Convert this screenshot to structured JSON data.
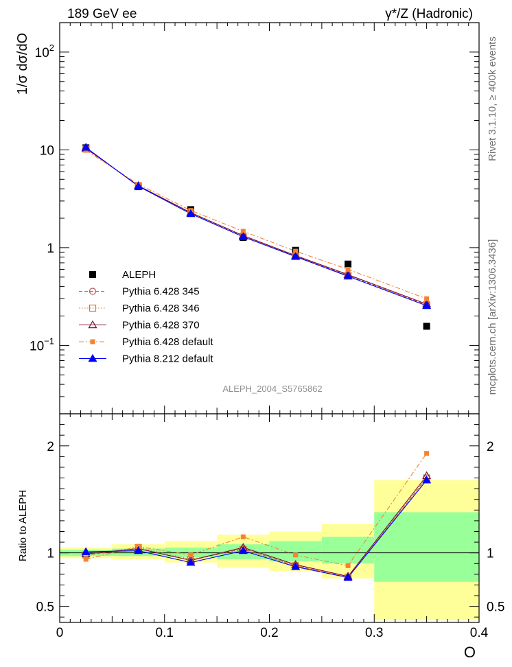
{
  "header": {
    "left": "189 GeV ee",
    "right": "γ*/Z (Hadronic)"
  },
  "side_labels": {
    "top": "Rivet 3.1.10, ≥ 400k events",
    "bottom": "mcplots.cern.ch [arXiv:1306.3436]"
  },
  "watermark": "ALEPH_2004_S5765862",
  "chart_data": [
    {
      "type": "line",
      "panel": "main",
      "ylabel": "1/σ dσ/dO",
      "xlabel": "O",
      "yscale": "log",
      "xlim": [
        0,
        0.4
      ],
      "ylim": [
        0.02,
        200
      ],
      "y_ticks": [
        {
          "value": 100,
          "base": "10",
          "exp": "2"
        },
        {
          "value": 10,
          "base": "10",
          "exp": ""
        },
        {
          "value": 1,
          "base": "1",
          "exp": ""
        },
        {
          "value": 0.1,
          "base": "10",
          "exp": "−1"
        }
      ],
      "x": [
        0.025,
        0.075,
        0.125,
        0.175,
        0.225,
        0.275,
        0.35
      ],
      "series": [
        {
          "name": "ALEPH",
          "marker": "filled-square",
          "color": "#000000",
          "line": "none",
          "values": [
            10.5,
            4.2,
            2.45,
            1.27,
            0.94,
            0.68,
            0.157
          ]
        },
        {
          "name": "Pythia 6.428 345",
          "marker": "open-circle",
          "color": "#c0504d",
          "line": "dashed",
          "values": [
            10.3,
            4.3,
            2.27,
            1.32,
            0.82,
            0.52,
            0.26
          ]
        },
        {
          "name": "Pythia 6.428 346",
          "marker": "open-square",
          "color": "#c87b3f",
          "line": "dotted",
          "values": [
            10.2,
            4.3,
            2.3,
            1.31,
            0.82,
            0.52,
            0.26
          ]
        },
        {
          "name": "Pythia 6.428 370",
          "marker": "open-triangle",
          "color": "#7a1030",
          "line": "solid",
          "values": [
            10.4,
            4.3,
            2.28,
            1.33,
            0.83,
            0.53,
            0.265
          ]
        },
        {
          "name": "Pythia 6.428 default",
          "marker": "filled-square-small",
          "color": "#f58231",
          "line": "dashdot",
          "values": [
            9.9,
            4.45,
            2.4,
            1.47,
            0.92,
            0.6,
            0.3
          ]
        },
        {
          "name": "Pythia 8.212 default",
          "marker": "filled-triangle",
          "color": "#0000ff",
          "line": "solid",
          "values": [
            10.6,
            4.25,
            2.22,
            1.29,
            0.81,
            0.51,
            0.255
          ]
        }
      ]
    },
    {
      "type": "line",
      "panel": "ratio",
      "ylabel": "Ratio to ALEPH",
      "xlabel": "O",
      "xlim": [
        0,
        0.4
      ],
      "ylim": [
        0.35,
        2.3
      ],
      "y_ticks": [
        {
          "value": 2,
          "label": "2"
        },
        {
          "value": 1,
          "label": "1"
        },
        {
          "value": 0.5,
          "label": "0.5"
        }
      ],
      "x_ticks": [
        {
          "value": 0,
          "label": "0"
        },
        {
          "value": 0.1,
          "label": "0.1"
        },
        {
          "value": 0.2,
          "label": "0.2"
        },
        {
          "value": 0.3,
          "label": "0.3"
        },
        {
          "value": 0.4,
          "label": "0.4"
        }
      ],
      "bands": [
        {
          "x0": 0.0,
          "x1": 0.05,
          "inner": [
            0.97,
            1.03
          ],
          "outer": [
            0.95,
            1.05
          ]
        },
        {
          "x0": 0.05,
          "x1": 0.1,
          "inner": [
            0.97,
            1.04
          ],
          "outer": [
            0.94,
            1.08
          ]
        },
        {
          "x0": 0.1,
          "x1": 0.15,
          "inner": [
            0.96,
            1.05
          ],
          "outer": [
            0.91,
            1.11
          ]
        },
        {
          "x0": 0.15,
          "x1": 0.2,
          "inner": [
            0.94,
            1.08
          ],
          "outer": [
            0.86,
            1.17
          ]
        },
        {
          "x0": 0.2,
          "x1": 0.25,
          "inner": [
            0.92,
            1.11
          ],
          "outer": [
            0.83,
            1.2
          ]
        },
        {
          "x0": 0.25,
          "x1": 0.3,
          "inner": [
            0.9,
            1.15
          ],
          "outer": [
            0.76,
            1.27
          ]
        },
        {
          "x0": 0.3,
          "x1": 0.4,
          "inner": [
            0.73,
            1.38
          ],
          "outer": [
            0.37,
            1.68
          ]
        }
      ],
      "x": [
        0.025,
        0.075,
        0.125,
        0.175,
        0.225,
        0.275,
        0.35
      ],
      "series": [
        {
          "name": "Pythia 6.428 345",
          "marker": "open-circle",
          "color": "#c0504d",
          "line": "dashed",
          "values": [
            0.98,
            1.04,
            0.93,
            1.04,
            0.88,
            0.77,
            1.7
          ]
        },
        {
          "name": "Pythia 6.428 346",
          "marker": "open-square",
          "color": "#c87b3f",
          "line": "dotted",
          "values": [
            0.98,
            1.05,
            0.94,
            1.03,
            0.88,
            0.77,
            1.7
          ]
        },
        {
          "name": "Pythia 6.428 370",
          "marker": "open-triangle",
          "color": "#7a1030",
          "line": "solid",
          "values": [
            0.99,
            1.04,
            0.93,
            1.05,
            0.89,
            0.78,
            1.72
          ]
        },
        {
          "name": "Pythia 6.428 default",
          "marker": "filled-square-small",
          "color": "#f58231",
          "line": "dashdot",
          "values": [
            0.94,
            1.06,
            0.98,
            1.15,
            0.98,
            0.88,
            1.93
          ]
        },
        {
          "name": "Pythia 8.212 default",
          "marker": "filled-triangle",
          "color": "#0000ff",
          "line": "solid",
          "values": [
            1.01,
            1.02,
            0.91,
            1.02,
            0.87,
            0.77,
            1.68
          ]
        }
      ]
    }
  ],
  "colors": {
    "band_inner": "#99ff99",
    "band_outer": "#ffff99",
    "reference_line": "#000000"
  }
}
